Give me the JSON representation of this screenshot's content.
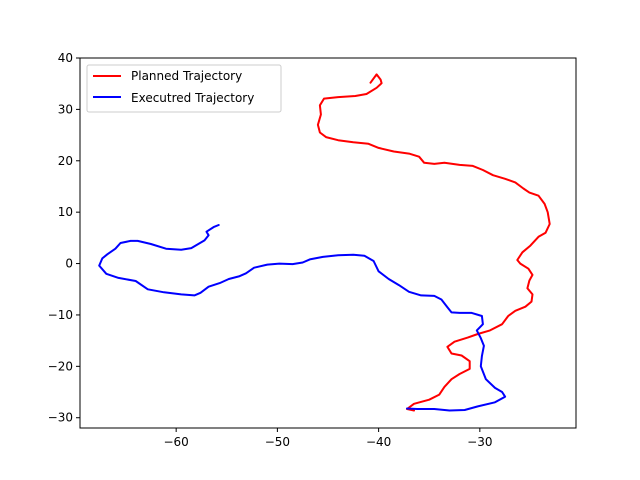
{
  "chart_data": {
    "type": "line",
    "title": "",
    "xlabel": "",
    "ylabel": "",
    "xlim": [
      -69.5,
      -20.5
    ],
    "ylim": [
      -32,
      40
    ],
    "x_ticks": [
      -60,
      -50,
      -40,
      -30
    ],
    "y_ticks": [
      -30,
      -20,
      -10,
      0,
      10,
      20,
      30,
      40
    ],
    "tick_labels_x": [
      "−60",
      "−50",
      "−40",
      "−30"
    ],
    "tick_labels_y": [
      "−30",
      "−20",
      "−10",
      "0",
      "10",
      "20",
      "30",
      "40"
    ],
    "grid": false,
    "legend": {
      "position": "top-left"
    },
    "series": [
      {
        "name": "Planned Trajectory",
        "color": "#ff0000",
        "points": [
          [
            -40.8,
            35.2
          ],
          [
            -40.2,
            36.8
          ],
          [
            -39.8,
            35.8
          ],
          [
            -39.7,
            35.1
          ],
          [
            -40.2,
            34.2
          ],
          [
            -41.2,
            33.0
          ],
          [
            -42.3,
            32.6
          ],
          [
            -44.0,
            32.4
          ],
          [
            -45.4,
            32.1
          ],
          [
            -45.8,
            30.8
          ],
          [
            -45.7,
            29.0
          ],
          [
            -46.0,
            27.0
          ],
          [
            -45.8,
            25.5
          ],
          [
            -45.2,
            24.6
          ],
          [
            -44.0,
            24.0
          ],
          [
            -42.5,
            23.6
          ],
          [
            -41.0,
            23.3
          ],
          [
            -40.0,
            22.5
          ],
          [
            -38.5,
            21.8
          ],
          [
            -37.0,
            21.4
          ],
          [
            -36.0,
            20.8
          ],
          [
            -35.5,
            19.6
          ],
          [
            -34.5,
            19.4
          ],
          [
            -33.5,
            19.6
          ],
          [
            -32.0,
            19.2
          ],
          [
            -30.7,
            19.0
          ],
          [
            -29.7,
            18.2
          ],
          [
            -28.7,
            17.2
          ],
          [
            -27.5,
            16.5
          ],
          [
            -26.5,
            15.8
          ],
          [
            -25.7,
            14.6
          ],
          [
            -25.1,
            13.8
          ],
          [
            -24.2,
            13.2
          ],
          [
            -23.6,
            11.6
          ],
          [
            -23.3,
            10.0
          ],
          [
            -23.1,
            7.7
          ],
          [
            -23.5,
            6.0
          ],
          [
            -24.2,
            5.2
          ],
          [
            -25.0,
            3.5
          ],
          [
            -25.8,
            2.2
          ],
          [
            -26.3,
            0.7
          ],
          [
            -26.0,
            0.0
          ],
          [
            -25.2,
            -1.0
          ],
          [
            -24.8,
            -2.2
          ],
          [
            -25.1,
            -3.3
          ],
          [
            -25.3,
            -4.8
          ],
          [
            -24.8,
            -6.0
          ],
          [
            -24.9,
            -7.4
          ],
          [
            -25.5,
            -8.4
          ],
          [
            -26.5,
            -9.2
          ],
          [
            -27.2,
            -10.2
          ],
          [
            -27.8,
            -11.8
          ],
          [
            -29.0,
            -13.0
          ],
          [
            -30.2,
            -13.7
          ],
          [
            -31.2,
            -14.4
          ],
          [
            -32.5,
            -15.2
          ],
          [
            -33.2,
            -16.2
          ],
          [
            -32.8,
            -17.5
          ],
          [
            -31.8,
            -17.9
          ],
          [
            -31.0,
            -19.0
          ],
          [
            -31.0,
            -20.5
          ],
          [
            -32.0,
            -21.5
          ],
          [
            -32.8,
            -22.5
          ],
          [
            -33.5,
            -24.0
          ],
          [
            -34.0,
            -25.5
          ],
          [
            -35.0,
            -26.5
          ],
          [
            -36.5,
            -27.3
          ],
          [
            -37.2,
            -28.3
          ],
          [
            -36.5,
            -28.6
          ]
        ]
      },
      {
        "name": "Executred Trajectory",
        "color": "#0000ff",
        "points": [
          [
            -55.8,
            7.5
          ],
          [
            -56.3,
            7.1
          ],
          [
            -57.0,
            6.2
          ],
          [
            -56.8,
            5.5
          ],
          [
            -57.2,
            4.5
          ],
          [
            -58.0,
            3.6
          ],
          [
            -58.5,
            3.0
          ],
          [
            -59.5,
            2.7
          ],
          [
            -61.0,
            2.9
          ],
          [
            -62.5,
            3.8
          ],
          [
            -63.8,
            4.4
          ],
          [
            -64.5,
            4.4
          ],
          [
            -65.5,
            4.0
          ],
          [
            -66.0,
            2.9
          ],
          [
            -66.8,
            1.8
          ],
          [
            -67.3,
            1.0
          ],
          [
            -67.6,
            -0.4
          ],
          [
            -66.9,
            -2.0
          ],
          [
            -65.7,
            -2.8
          ],
          [
            -64.0,
            -3.4
          ],
          [
            -62.8,
            -5.0
          ],
          [
            -61.2,
            -5.6
          ],
          [
            -59.5,
            -6.0
          ],
          [
            -58.2,
            -6.2
          ],
          [
            -57.6,
            -5.7
          ],
          [
            -56.8,
            -4.5
          ],
          [
            -55.7,
            -3.8
          ],
          [
            -54.8,
            -3.0
          ],
          [
            -53.8,
            -2.5
          ],
          [
            -53.1,
            -1.9
          ],
          [
            -52.3,
            -0.8
          ],
          [
            -51.0,
            -0.2
          ],
          [
            -49.8,
            0.0
          ],
          [
            -48.5,
            -0.1
          ],
          [
            -47.5,
            0.2
          ],
          [
            -46.8,
            0.8
          ],
          [
            -45.5,
            1.3
          ],
          [
            -44.0,
            1.6
          ],
          [
            -42.5,
            1.7
          ],
          [
            -41.4,
            1.5
          ],
          [
            -40.5,
            0.5
          ],
          [
            -40.0,
            -1.5
          ],
          [
            -39.0,
            -3.0
          ],
          [
            -38.0,
            -4.2
          ],
          [
            -37.0,
            -5.5
          ],
          [
            -35.8,
            -6.2
          ],
          [
            -34.5,
            -6.3
          ],
          [
            -33.8,
            -7.0
          ],
          [
            -33.2,
            -8.5
          ],
          [
            -32.8,
            -9.5
          ],
          [
            -32.0,
            -9.6
          ],
          [
            -30.8,
            -9.6
          ],
          [
            -29.8,
            -10.2
          ],
          [
            -29.7,
            -11.8
          ],
          [
            -30.3,
            -13.0
          ],
          [
            -29.9,
            -14.5
          ],
          [
            -29.6,
            -16.0
          ],
          [
            -29.8,
            -18.0
          ],
          [
            -29.9,
            -20.0
          ],
          [
            -29.4,
            -22.5
          ],
          [
            -28.5,
            -24.2
          ],
          [
            -27.8,
            -25.0
          ],
          [
            -27.5,
            -25.9
          ],
          [
            -28.5,
            -27.0
          ],
          [
            -30.2,
            -27.8
          ],
          [
            -31.5,
            -28.5
          ],
          [
            -33.0,
            -28.6
          ],
          [
            -34.5,
            -28.3
          ],
          [
            -36.2,
            -28.3
          ],
          [
            -37.2,
            -28.2
          ]
        ]
      }
    ]
  }
}
